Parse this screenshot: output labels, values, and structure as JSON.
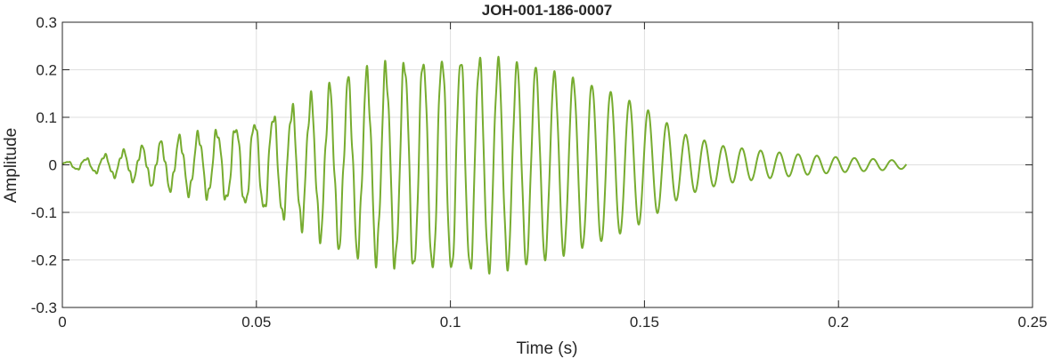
{
  "chart_data": {
    "type": "line",
    "title": "JOH-001-186-0007",
    "xlabel": "Time (s)",
    "ylabel": "Amplitude",
    "xlim": [
      0,
      0.25
    ],
    "ylim": [
      -0.3,
      0.3
    ],
    "xticks": [
      0,
      0.05,
      0.1,
      0.15,
      0.2,
      0.25
    ],
    "xtick_labels": [
      "0",
      "0.05",
      "0.1",
      "0.15",
      "0.2",
      "0.25"
    ],
    "yticks": [
      -0.3,
      -0.2,
      -0.1,
      0,
      0.1,
      0.2,
      0.3
    ],
    "ytick_labels": [
      "-0.3",
      "-0.2",
      "-0.1",
      "0",
      "0.1",
      "0.2",
      "0.3"
    ],
    "grid": true,
    "line_color": "#77ac30",
    "series": [
      {
        "name": "",
        "x_start": 0,
        "x_end": 0.2175,
        "dominant_frequency_hz": 207,
        "envelope": {
          "t": [
            0,
            0.01,
            0.02,
            0.03,
            0.04,
            0.05,
            0.06,
            0.07,
            0.08,
            0.09,
            0.1,
            0.11,
            0.12,
            0.13,
            0.14,
            0.15,
            0.16,
            0.17,
            0.18,
            0.19,
            0.2,
            0.21,
            0.2175
          ],
          "amplitude": [
            0.005,
            0.018,
            0.035,
            0.055,
            0.07,
            0.09,
            0.12,
            0.165,
            0.195,
            0.22,
            0.225,
            0.22,
            0.205,
            0.185,
            0.16,
            0.12,
            0.065,
            0.04,
            0.03,
            0.022,
            0.016,
            0.012,
            0.008
          ]
        }
      }
    ]
  }
}
